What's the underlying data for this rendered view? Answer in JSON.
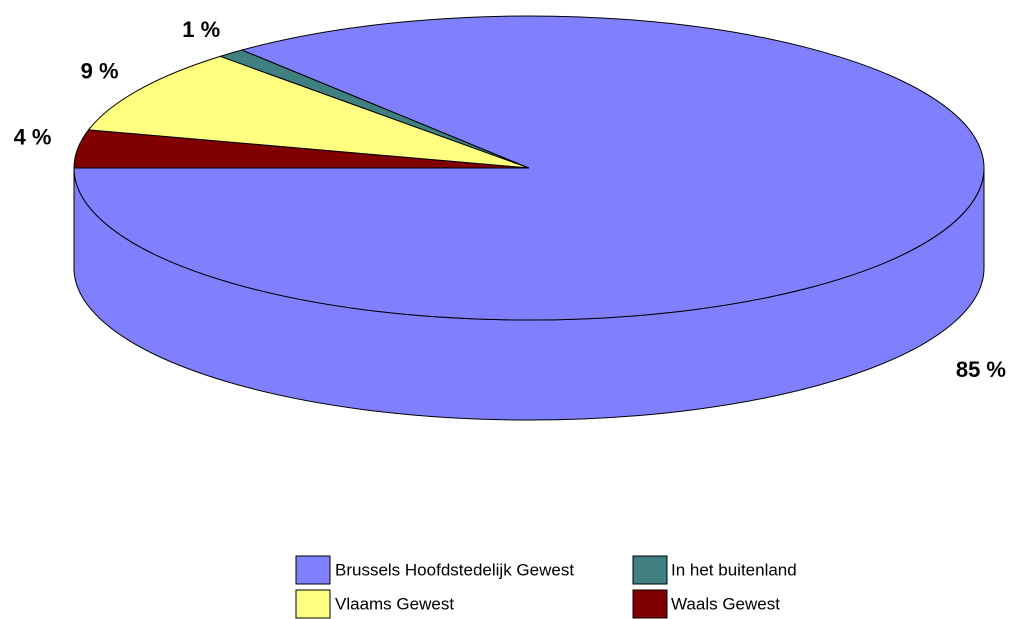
{
  "chart_data": {
    "type": "pie",
    "categories": [
      "Brussels Hoofdstedelijk Gewest",
      "In het buitenland",
      "Vlaams Gewest",
      "Waals Gewest"
    ],
    "values": [
      85,
      1,
      9,
      4
    ],
    "value_labels": [
      "85 %",
      "1 %",
      "9 %",
      "4 %"
    ],
    "colors": [
      "#8080ff",
      "#408080",
      "#ffff80",
      "#800000"
    ],
    "legend": "bottom"
  }
}
